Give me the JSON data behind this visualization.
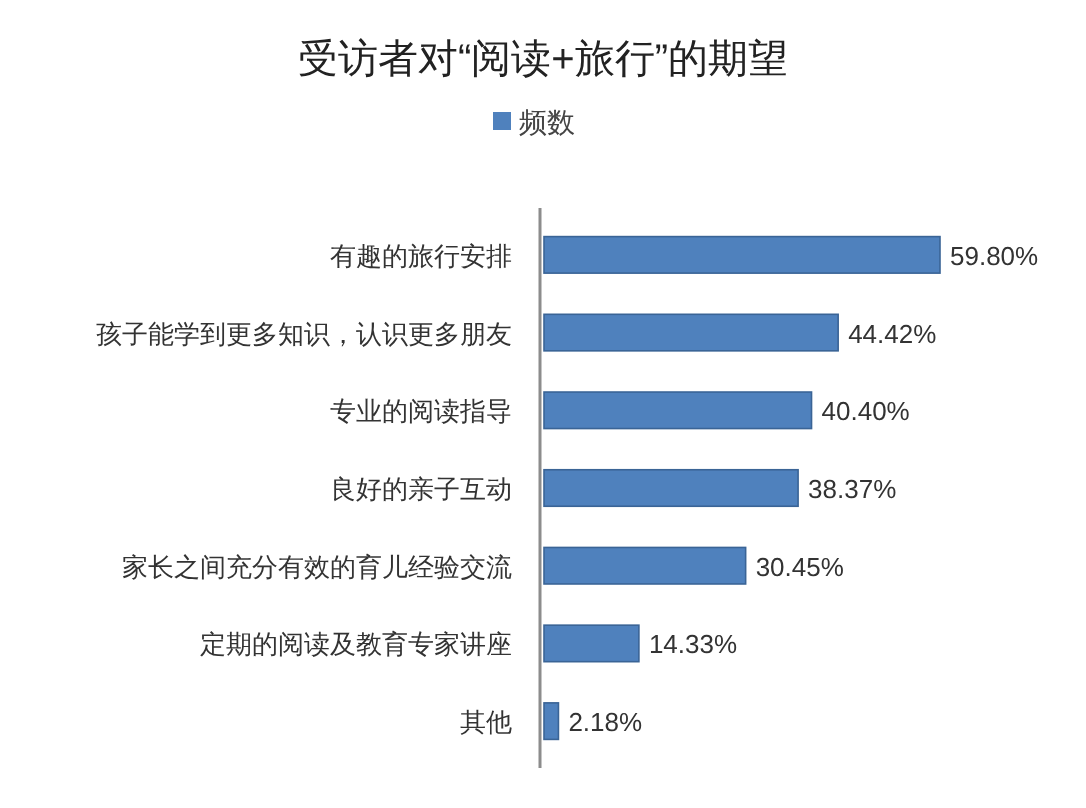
{
  "chart_data": {
    "type": "bar",
    "orientation": "horizontal",
    "title": "受访者对“阅读+旅行”的期望",
    "legend": "top",
    "categories": [
      "有趣的旅行安排",
      "孩子能学到更多知识，认识更多朋友",
      "专业的阅读指导",
      "良好的亲子互动",
      "家长之间充分有效的育儿经验交流",
      "定期的阅读及教育专家讲座",
      "其他"
    ],
    "series": [
      {
        "name": "频数",
        "color": "#4f81bd",
        "values": [
          59.8,
          44.42,
          40.4,
          38.37,
          30.45,
          14.33,
          2.18
        ],
        "value_labels": [
          "59.80%",
          "44.42%",
          "40.40%",
          "38.37%",
          "30.45%",
          "14.33%",
          "2.18%"
        ]
      }
    ]
  }
}
